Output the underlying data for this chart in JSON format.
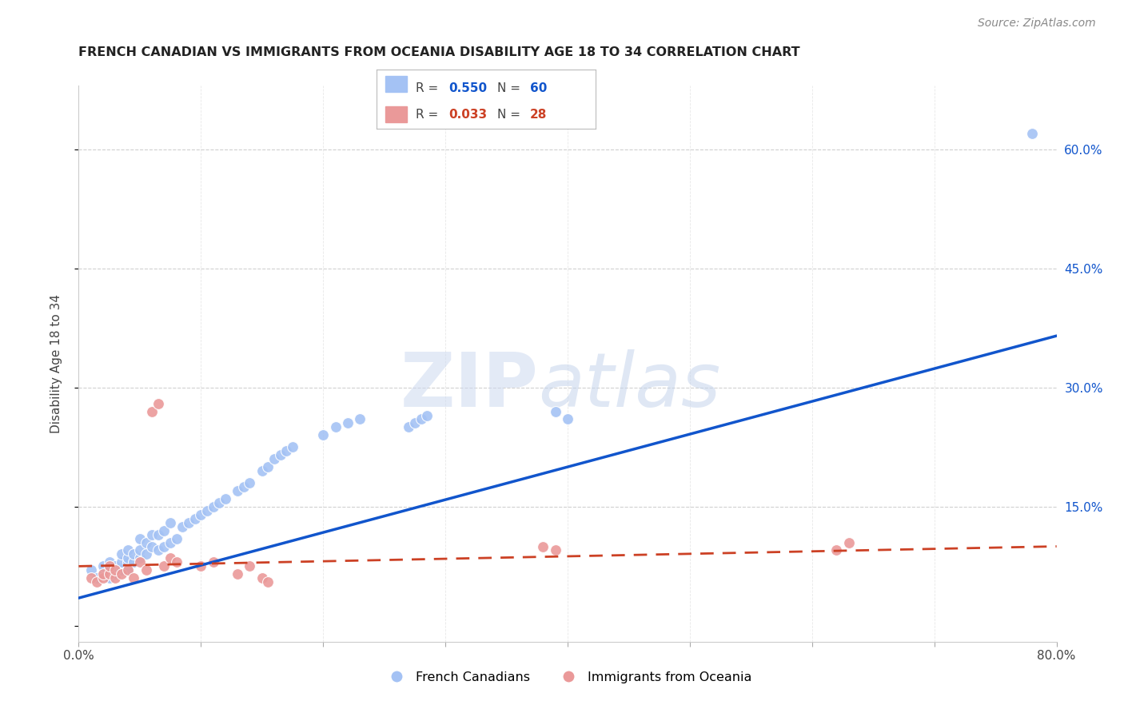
{
  "title": "FRENCH CANADIAN VS IMMIGRANTS FROM OCEANIA DISABILITY AGE 18 TO 34 CORRELATION CHART",
  "source": "Source: ZipAtlas.com",
  "ylabel": "Disability Age 18 to 34",
  "xlim": [
    0.0,
    0.8
  ],
  "ylim": [
    -0.02,
    0.68
  ],
  "right_yticks": [
    0.0,
    0.15,
    0.3,
    0.45,
    0.6
  ],
  "right_yticklabels": [
    "",
    "15.0%",
    "30.0%",
    "45.0%",
    "60.0%"
  ],
  "xticks": [
    0.0,
    0.1,
    0.2,
    0.3,
    0.4,
    0.5,
    0.6,
    0.7,
    0.8
  ],
  "xticklabels": [
    "0.0%",
    "",
    "",
    "",
    "",
    "",
    "",
    "",
    "80.0%"
  ],
  "legend_r1": "0.550",
  "legend_n1": "60",
  "legend_r2": "0.033",
  "legend_n2": "28",
  "blue_color": "#a4c2f4",
  "pink_color": "#ea9999",
  "trend_blue": "#1155cc",
  "trend_pink": "#cc4125",
  "watermark_zip": "ZIP",
  "watermark_atlas": "atlas",
  "blue_x": [
    0.01,
    0.015,
    0.02,
    0.02,
    0.025,
    0.025,
    0.025,
    0.03,
    0.03,
    0.035,
    0.035,
    0.035,
    0.04,
    0.04,
    0.04,
    0.04,
    0.045,
    0.045,
    0.05,
    0.05,
    0.05,
    0.055,
    0.055,
    0.06,
    0.06,
    0.065,
    0.065,
    0.07,
    0.07,
    0.075,
    0.075,
    0.08,
    0.085,
    0.09,
    0.095,
    0.1,
    0.105,
    0.11,
    0.115,
    0.12,
    0.13,
    0.135,
    0.14,
    0.15,
    0.155,
    0.16,
    0.165,
    0.17,
    0.175,
    0.2,
    0.21,
    0.22,
    0.23,
    0.27,
    0.275,
    0.28,
    0.285,
    0.39,
    0.4,
    0.78
  ],
  "blue_y": [
    0.07,
    0.06,
    0.065,
    0.075,
    0.06,
    0.07,
    0.08,
    0.065,
    0.075,
    0.07,
    0.08,
    0.09,
    0.07,
    0.08,
    0.085,
    0.095,
    0.08,
    0.09,
    0.085,
    0.095,
    0.11,
    0.09,
    0.105,
    0.1,
    0.115,
    0.095,
    0.115,
    0.1,
    0.12,
    0.105,
    0.13,
    0.11,
    0.125,
    0.13,
    0.135,
    0.14,
    0.145,
    0.15,
    0.155,
    0.16,
    0.17,
    0.175,
    0.18,
    0.195,
    0.2,
    0.21,
    0.215,
    0.22,
    0.225,
    0.24,
    0.25,
    0.255,
    0.26,
    0.25,
    0.255,
    0.26,
    0.265,
    0.27,
    0.26,
    0.62
  ],
  "pink_x": [
    0.01,
    0.015,
    0.02,
    0.02,
    0.025,
    0.025,
    0.03,
    0.03,
    0.035,
    0.04,
    0.045,
    0.05,
    0.055,
    0.06,
    0.065,
    0.07,
    0.075,
    0.08,
    0.1,
    0.11,
    0.13,
    0.14,
    0.15,
    0.155,
    0.38,
    0.39,
    0.62,
    0.63
  ],
  "pink_y": [
    0.06,
    0.055,
    0.06,
    0.065,
    0.065,
    0.075,
    0.06,
    0.07,
    0.065,
    0.07,
    0.06,
    0.08,
    0.07,
    0.27,
    0.28,
    0.075,
    0.085,
    0.08,
    0.075,
    0.08,
    0.065,
    0.075,
    0.06,
    0.055,
    0.1,
    0.095,
    0.095,
    0.105
  ],
  "blue_trend_x": [
    0.0,
    0.8
  ],
  "blue_trend_y": [
    0.035,
    0.365
  ],
  "pink_trend_x": [
    0.0,
    0.8
  ],
  "pink_trend_y": [
    0.075,
    0.1
  ],
  "grid_color": "#d0d0d0",
  "bg_color": "#ffffff",
  "text_color": "#444444",
  "source_color": "#888888"
}
